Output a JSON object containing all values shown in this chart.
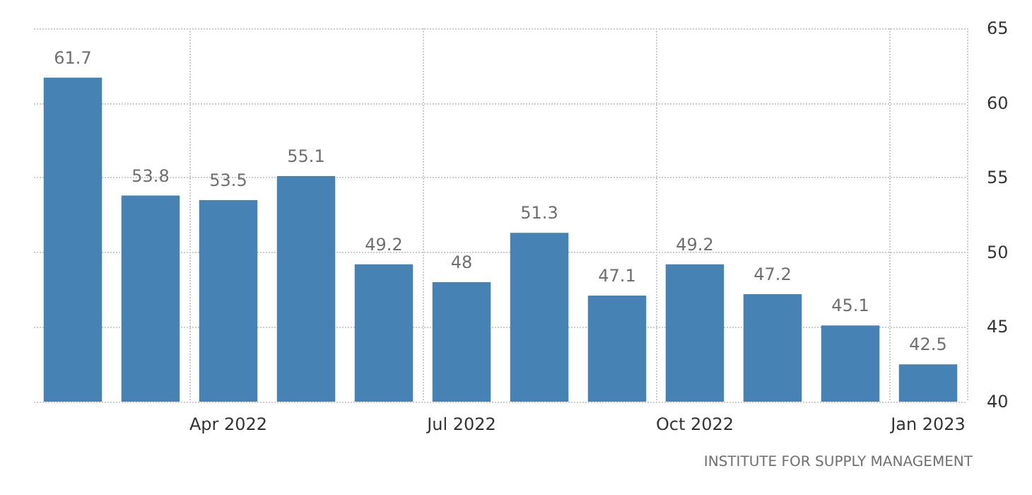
{
  "chart_data": {
    "type": "bar",
    "categories": [
      null,
      null,
      "Apr 2022",
      null,
      null,
      "Jul 2022",
      null,
      null,
      "Oct 2022",
      null,
      null,
      "Jan 2023"
    ],
    "values": [
      61.7,
      53.8,
      53.5,
      55.1,
      49.2,
      48,
      51.3,
      47.1,
      49.2,
      47.2,
      45.1,
      42.5
    ],
    "color": "#4682b4",
    "ylim": [
      40,
      65
    ],
    "yticks": [
      40,
      45,
      50,
      55,
      60,
      65
    ],
    "grid": true,
    "data_labels": true,
    "annotations": [
      "INSTITUTE FOR SUPPLY MANAGEMENT"
    ]
  }
}
